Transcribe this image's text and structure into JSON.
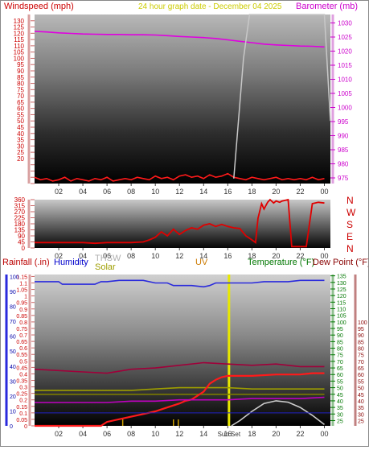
{
  "chart_data": [
    {
      "type": "line",
      "panel": "wind-barometer",
      "header": {
        "left": "Windspeed (mph)",
        "center": "24 hour graph date - December 04 2025",
        "right": "Barometer (mb)"
      },
      "y_left_ticks": [
        "0",
        "5",
        "10",
        "15",
        "20",
        "25",
        "30",
        "35",
        "40",
        "45",
        "50",
        "55",
        "60",
        "65",
        "70",
        "75",
        "80",
        "85",
        "90",
        "95",
        "100",
        "105",
        "110",
        "115",
        "120",
        "125",
        "130"
      ],
      "y_left_label_ticks": [
        "20",
        "25",
        "30",
        "35",
        "40",
        "45",
        "50",
        "55",
        "60",
        "65",
        "70",
        "75",
        "80",
        "85",
        "90",
        "95",
        "100",
        "105",
        "110",
        "115",
        "120",
        "125",
        "130"
      ],
      "ylim_left": [
        0,
        135
      ],
      "y_right_ticks": [
        "975",
        "980",
        "985",
        "990",
        "995",
        "1000",
        "1005",
        "1010",
        "1015",
        "1020",
        "1025",
        "1030"
      ],
      "ylim_right": [
        973,
        1033
      ],
      "x_ticks": [
        "02",
        "04",
        "06",
        "08",
        "10",
        "12",
        "14",
        "16",
        "18",
        "20",
        "22",
        "00"
      ],
      "xlim": [
        0,
        24.5
      ],
      "series": [
        {
          "name": "Barometer (mb)",
          "color": "#e000e0",
          "axis": "right",
          "x": [
            0,
            1,
            2,
            3,
            4,
            5,
            6,
            7,
            8,
            9,
            10,
            11,
            12,
            13,
            14,
            15,
            16,
            17,
            18,
            19,
            20,
            21,
            22,
            23,
            24
          ],
          "y": [
            1027,
            1026.8,
            1026.5,
            1026.3,
            1026.1,
            1026,
            1025.9,
            1025.9,
            1025.8,
            1025.8,
            1025.7,
            1025.5,
            1025.2,
            1025,
            1024.8,
            1024.5,
            1024,
            1023.5,
            1023,
            1022.5,
            1022.2,
            1022,
            1021.8,
            1021.7,
            1021.5
          ]
        },
        {
          "name": "Windspeed (mph)",
          "color": "#ff1a1a",
          "axis": "left",
          "x": [
            0,
            0.5,
            1,
            1.5,
            2,
            2.5,
            3,
            3.5,
            4,
            4.5,
            5,
            5.5,
            6,
            6.5,
            7,
            7.5,
            8,
            8.5,
            9,
            9.5,
            10,
            10.5,
            11,
            11.5,
            12,
            12.5,
            13,
            13.5,
            14,
            14.5,
            15,
            15.5,
            16,
            16.5,
            17,
            17.5,
            18,
            18.5,
            19,
            19.5,
            20,
            20.5,
            21,
            21.5,
            22,
            22.5,
            23,
            23.5,
            24
          ],
          "y": [
            5,
            3,
            4,
            2,
            3,
            5,
            2,
            4,
            3,
            2,
            4,
            3,
            5,
            2,
            3,
            4,
            3,
            5,
            4,
            3,
            6,
            4,
            5,
            3,
            6,
            7,
            5,
            6,
            4,
            7,
            5,
            6,
            8,
            5,
            4,
            3,
            5,
            4,
            3,
            4,
            5,
            3,
            4,
            3,
            4,
            3,
            5,
            3,
            4
          ]
        },
        {
          "name": "Wind gust spike",
          "color": "#c8c8c8",
          "axis": "left",
          "x": [
            16.5,
            17.3,
            17.8,
            24,
            24.5
          ],
          "y": [
            4,
            100,
            135,
            135,
            50
          ]
        }
      ]
    },
    {
      "type": "line",
      "panel": "wind-direction",
      "y_ticks": [
        "0",
        "45",
        "90",
        "135",
        "180",
        "225",
        "270",
        "315",
        "360"
      ],
      "ylim": [
        0,
        360
      ],
      "compass": [
        "N",
        "W",
        "S",
        "E",
        "N"
      ],
      "x_ticks": [
        "02",
        "04",
        "06",
        "08",
        "10",
        "12",
        "14",
        "16",
        "18",
        "20",
        "22",
        "00"
      ],
      "xlim": [
        0,
        24.5
      ],
      "series": [
        {
          "name": "Wind direction",
          "color": "#e00000",
          "x": [
            0,
            1,
            2,
            3,
            4,
            5,
            6,
            7,
            8,
            9,
            9.5,
            10,
            10.5,
            11,
            11.5,
            12,
            12.5,
            13,
            13.5,
            14,
            14.5,
            15,
            15.5,
            16,
            16.5,
            17,
            17.5,
            18,
            18.3,
            18.5,
            18.8,
            19,
            19.3,
            19.5,
            19.8,
            20,
            20.3,
            20.5,
            21,
            21.3,
            21.6,
            22,
            22.5,
            23,
            23.5,
            24
          ],
          "y": [
            40,
            40,
            40,
            40,
            40,
            35,
            40,
            40,
            40,
            45,
            60,
            80,
            120,
            90,
            140,
            100,
            130,
            150,
            140,
            170,
            180,
            160,
            175,
            160,
            150,
            145,
            90,
            60,
            40,
            220,
            330,
            290,
            340,
            360,
            335,
            350,
            340,
            350,
            360,
            10,
            10,
            10,
            10,
            330,
            340,
            335
          ]
        }
      ]
    },
    {
      "type": "line",
      "panel": "weather",
      "headers": {
        "rainfall": "Rainfall (.in)",
        "humidity": "Humidity",
        "thsw": "THSW",
        "solar": "Solar",
        "uv": "UV",
        "temperature": "Temperature (°F)",
        "dewpoint": "Dew Point (°F)"
      },
      "y_left_ticks": [
        "0",
        "0.05",
        "0.1",
        "0.15",
        "0.2",
        "0.25",
        "0.3",
        "0.35",
        "0.4",
        "0.45",
        "0.5",
        "0.55",
        "0.6",
        "0.65",
        "0.7",
        "0.75",
        "0.8",
        "0.85",
        "0.9",
        "0.95",
        "1",
        "1.05",
        "1.1",
        "1.15"
      ],
      "y_left_label_ticks": [
        "0",
        "10",
        "20",
        "30",
        "40",
        "50",
        "60",
        "70",
        "80",
        "90",
        "100"
      ],
      "ylim_left": [
        0,
        1.165
      ],
      "y_right_ticks": [
        "25",
        "30",
        "35",
        "40",
        "45",
        "50",
        "55",
        "60",
        "65",
        "70",
        "75",
        "80",
        "85",
        "90",
        "95",
        "100",
        "105",
        "110",
        "115",
        "120",
        "125",
        "130",
        "135"
      ],
      "y_right_label_ticks": [
        "25",
        "30",
        "35",
        "40",
        "45",
        "50",
        "55",
        "60",
        "65",
        "70",
        "75",
        "80",
        "85",
        "90",
        "95",
        "100"
      ],
      "ylim_right": [
        21,
        136
      ],
      "x_ticks": [
        "02",
        "04",
        "06",
        "08",
        "10",
        "12",
        "14",
        "16",
        "18",
        "20",
        "22",
        "00"
      ],
      "sun_labels": [
        "Sun",
        "Set"
      ],
      "xlim": [
        0,
        24.5
      ],
      "series": [
        {
          "name": "Humidity",
          "color": "#2a2adc",
          "axis": "left",
          "x": [
            0,
            2,
            2.3,
            5,
            5.5,
            6,
            7,
            9,
            10,
            11,
            11.5,
            12,
            13,
            14,
            14.5,
            15,
            16,
            17,
            18,
            19,
            20,
            21,
            22,
            24
          ],
          "y": [
            1.11,
            1.11,
            1.09,
            1.09,
            1.11,
            1.11,
            1.12,
            1.12,
            1.1,
            1.1,
            1.08,
            1.08,
            1.08,
            1.07,
            1.08,
            1.1,
            1.1,
            1.1,
            1.1,
            1.11,
            1.11,
            1.11,
            1.12,
            1.12
          ]
        },
        {
          "name": "Dew Point (°F)",
          "color": "#a0003a",
          "axis": "right",
          "x": [
            0,
            2,
            4,
            6,
            8,
            10,
            12,
            14,
            16,
            18,
            20,
            22,
            24
          ],
          "y": [
            64,
            63,
            62,
            61,
            64,
            65,
            67,
            69,
            68,
            67,
            68,
            66,
            66
          ]
        },
        {
          "name": "Solar",
          "color": "#9e9e00",
          "axis": "right",
          "x": [
            0,
            2,
            4,
            6,
            8,
            10,
            12,
            14,
            16,
            18,
            20,
            22,
            24
          ],
          "y": [
            48,
            48,
            48,
            48,
            48,
            49,
            50,
            50,
            50,
            49,
            49,
            49,
            49
          ]
        },
        {
          "name": "THSW",
          "color": "#7a7a00",
          "axis": "right",
          "x": [
            0,
            2,
            4,
            6,
            8,
            10,
            12,
            14,
            16,
            18,
            20,
            22,
            24
          ],
          "y": [
            45,
            45,
            45,
            45,
            45,
            45,
            45,
            45,
            45,
            45,
            45,
            45,
            45
          ]
        },
        {
          "name": "Temperature (°F)",
          "color": "#ff1a1a",
          "axis": "right",
          "x": [
            0,
            5.5,
            6,
            7,
            8,
            9,
            10,
            11,
            12,
            12.5,
            13,
            14,
            14.5,
            15,
            15.5,
            16,
            17,
            18,
            20,
            22,
            23,
            24
          ],
          "y": [
            21,
            21,
            24,
            26,
            28,
            30,
            32,
            35,
            38,
            40,
            41,
            47,
            53,
            56,
            58,
            59,
            59,
            59,
            60,
            60,
            61,
            61
          ]
        },
        {
          "name": "Rainfall (.in)",
          "color": "#c000c0",
          "axis": "left",
          "x": [
            0,
            2,
            4,
            6,
            8,
            10,
            12,
            14,
            16,
            18,
            20,
            22,
            24
          ],
          "y": [
            0.18,
            0.18,
            0.18,
            0.18,
            0.19,
            0.19,
            0.2,
            0.2,
            0.2,
            0.21,
            0.21,
            0.21,
            0.22
          ]
        },
        {
          "name": "UV",
          "color": "#cccccc",
          "axis": "right",
          "x": [
            16.3,
            17,
            18,
            19,
            20,
            21,
            22,
            23,
            24
          ],
          "y": [
            21,
            25,
            32,
            38,
            40,
            39,
            35,
            29,
            22
          ]
        }
      ]
    }
  ]
}
